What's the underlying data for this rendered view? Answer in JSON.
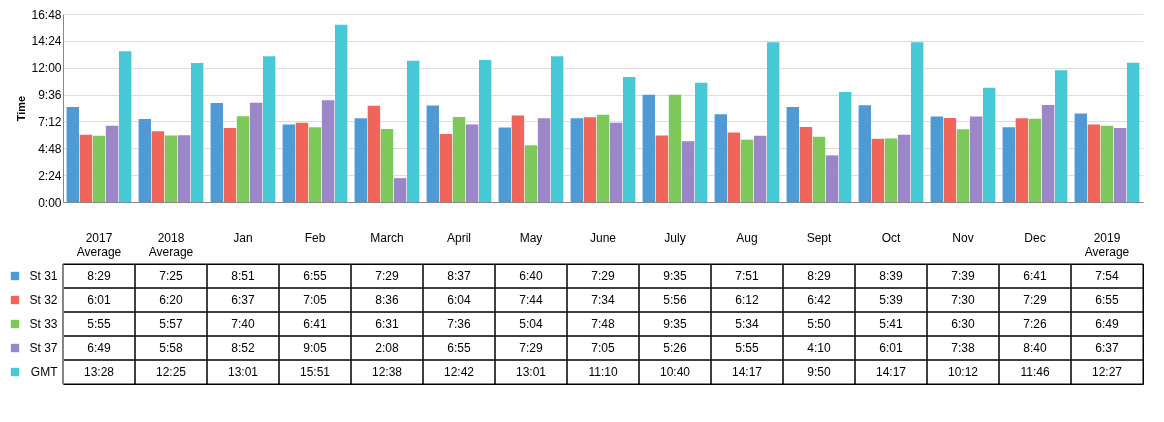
{
  "chart_data": {
    "type": "bar",
    "ylabel": "Time",
    "categories": [
      "2017 Average",
      "2018 Average",
      "Jan",
      "Feb",
      "March",
      "April",
      "May",
      "June",
      "July",
      "Aug",
      "Sept",
      "Oct",
      "Nov",
      "Dec",
      "2019 Average"
    ],
    "ylim": [
      0,
      16.8
    ],
    "yticks": [
      {
        "value": 0,
        "label": "0:00"
      },
      {
        "value": 2.4,
        "label": "2:24"
      },
      {
        "value": 4.8,
        "label": "4:48"
      },
      {
        "value": 7.2,
        "label": "7:12"
      },
      {
        "value": 9.6,
        "label": "9:36"
      },
      {
        "value": 12,
        "label": "12:00"
      },
      {
        "value": 14.4,
        "label": "14:24"
      },
      {
        "value": 16.8,
        "label": "16:48"
      }
    ],
    "grid": "y",
    "legend": "bottom left",
    "series": [
      {
        "name": "St 31",
        "color": "#4f9ad6",
        "values": [
          8.483,
          7.417,
          8.85,
          6.917,
          7.483,
          8.617,
          6.667,
          7.483,
          9.583,
          7.85,
          8.483,
          8.65,
          7.65,
          6.683,
          7.9
        ],
        "value_labels": [
          "8:29",
          "7:25",
          "8:51",
          "6:55",
          "7:29",
          "8:37",
          "6:40",
          "7:29",
          "9:35",
          "7:51",
          "8:29",
          "8:39",
          "7:39",
          "6:41",
          "7:54"
        ]
      },
      {
        "name": "St 32",
        "color": "#f0645a",
        "values": [
          6.017,
          6.333,
          6.617,
          7.083,
          8.6,
          6.067,
          7.733,
          7.567,
          5.933,
          6.2,
          6.7,
          5.65,
          7.5,
          7.483,
          6.917
        ],
        "value_labels": [
          "6:01",
          "6:20",
          "6:37",
          "7:05",
          "8:36",
          "6:04",
          "7:44",
          "7:34",
          "5:56",
          "6:12",
          "6:42",
          "5:39",
          "7:30",
          "7:29",
          "6:55"
        ]
      },
      {
        "name": "St 33",
        "color": "#7cc95a",
        "values": [
          5.917,
          5.95,
          7.667,
          6.683,
          6.517,
          7.6,
          5.067,
          7.8,
          9.583,
          5.567,
          5.833,
          5.683,
          6.5,
          7.433,
          6.817
        ],
        "value_labels": [
          "5:55",
          "5:57",
          "7:40",
          "6:41",
          "6:31",
          "7:36",
          "5:04",
          "7:48",
          "9:35",
          "5:34",
          "5:50",
          "5:41",
          "6:30",
          "7:26",
          "6:49"
        ]
      },
      {
        "name": "St 37",
        "color": "#9a86c8",
        "values": [
          6.817,
          5.967,
          8.867,
          9.083,
          2.133,
          6.917,
          7.483,
          7.083,
          5.433,
          5.917,
          4.167,
          6.017,
          7.633,
          8.667,
          6.617
        ],
        "value_labels": [
          "6:49",
          "5:58",
          "8:52",
          "9:05",
          "2:08",
          "6:55",
          "7:29",
          "7:05",
          "5:26",
          "5:55",
          "4:10",
          "6:01",
          "7:38",
          "8:40",
          "6:37"
        ]
      },
      {
        "name": "GMT",
        "color": "#47c8d6",
        "values": [
          13.467,
          12.417,
          13.017,
          15.85,
          12.633,
          12.7,
          13.017,
          11.167,
          10.667,
          14.283,
          9.833,
          14.283,
          10.2,
          11.767,
          12.45
        ],
        "value_labels": [
          "13:28",
          "12:25",
          "13:01",
          "15:51",
          "12:38",
          "12:42",
          "13:01",
          "11:10",
          "10:40",
          "14:17",
          "9:50",
          "14:17",
          "10:12",
          "11:46",
          "12:27"
        ]
      }
    ]
  }
}
